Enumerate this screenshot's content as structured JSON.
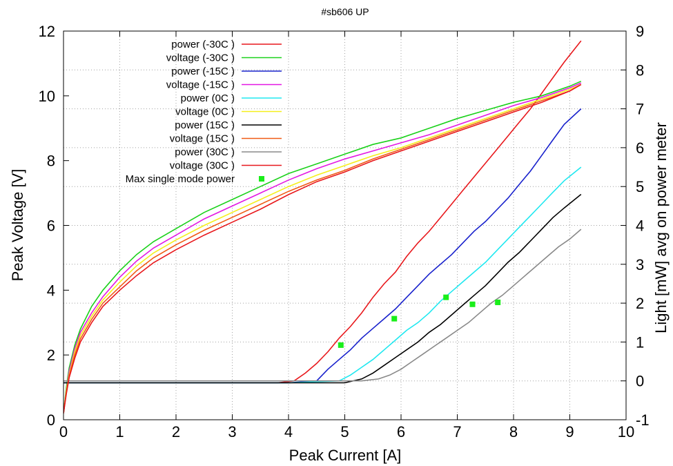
{
  "chart_data": {
    "type": "line",
    "title": "#sb606 UP",
    "xlabel": "Peak Current [A]",
    "ylabel": "Peak Voltage [V]",
    "y2label": "Light [mW] avg on power meter",
    "xlim": [
      0,
      10
    ],
    "ylim": [
      0,
      12
    ],
    "y2lim": [
      -1,
      9
    ],
    "xticks": [
      "0",
      "1",
      "2",
      "3",
      "4",
      "5",
      "6",
      "7",
      "8",
      "9",
      "10"
    ],
    "yticks": [
      "0",
      "2",
      "4",
      "6",
      "8",
      "10",
      "12"
    ],
    "y2ticks": [
      "-1",
      "0",
      "1",
      "2",
      "3",
      "4",
      "5",
      "6",
      "7",
      "8",
      "9"
    ],
    "grid": true,
    "legend_position": "top-left",
    "series": [
      {
        "name": "power (-30C )",
        "axis": "y2",
        "color": "#e8171b",
        "x": [
          0,
          1,
          2,
          3,
          3.8,
          4.1,
          4.3,
          4.5,
          4.7,
          4.9,
          5.1,
          5.3,
          5.5,
          5.7,
          5.9,
          6.1,
          6.3,
          6.5,
          6.7,
          6.9,
          7.1,
          7.3,
          7.5,
          7.7,
          7.9,
          8.1,
          8.3,
          8.5,
          8.7,
          8.9,
          9.2
        ],
        "y": [
          -0.05,
          -0.05,
          -0.05,
          -0.05,
          -0.05,
          0.0,
          0.2,
          0.45,
          0.75,
          1.1,
          1.4,
          1.75,
          2.15,
          2.5,
          2.8,
          3.2,
          3.55,
          3.85,
          4.2,
          4.55,
          4.9,
          5.25,
          5.6,
          5.95,
          6.3,
          6.65,
          7.0,
          7.4,
          7.8,
          8.2,
          8.75
        ]
      },
      {
        "name": "voltage (-30C )",
        "axis": "y",
        "color": "#1ad11a",
        "x": [
          0,
          0.05,
          0.1,
          0.2,
          0.3,
          0.5,
          0.7,
          1.0,
          1.3,
          1.6,
          2.0,
          2.5,
          3.0,
          3.5,
          4.0,
          4.5,
          5.0,
          5.5,
          6.0,
          6.5,
          7.0,
          7.5,
          8.0,
          8.5,
          9.0,
          9.2
        ],
        "y": [
          0.2,
          1.0,
          1.6,
          2.3,
          2.8,
          3.5,
          4.0,
          4.6,
          5.1,
          5.5,
          5.9,
          6.4,
          6.8,
          7.2,
          7.6,
          7.9,
          8.2,
          8.5,
          8.7,
          9.0,
          9.3,
          9.55,
          9.8,
          10.0,
          10.3,
          10.45
        ]
      },
      {
        "name": "power (-15C )",
        "axis": "y2",
        "color": "#1720cc",
        "x": [
          0,
          1,
          2,
          3,
          4,
          4.5,
          4.7,
          4.9,
          5.1,
          5.3,
          5.5,
          5.7,
          5.9,
          6.1,
          6.3,
          6.5,
          6.7,
          6.9,
          7.1,
          7.3,
          7.5,
          7.7,
          7.9,
          8.1,
          8.3,
          8.5,
          8.7,
          8.9,
          9.2
        ],
        "y": [
          -0.05,
          -0.05,
          -0.05,
          -0.05,
          -0.05,
          0.0,
          0.3,
          0.55,
          0.8,
          1.1,
          1.35,
          1.6,
          1.85,
          2.15,
          2.45,
          2.75,
          3.0,
          3.25,
          3.55,
          3.85,
          4.1,
          4.4,
          4.7,
          5.05,
          5.4,
          5.8,
          6.2,
          6.6,
          7.0
        ]
      },
      {
        "name": "voltage (-15C )",
        "axis": "y",
        "color": "#e317e3",
        "x": [
          0,
          0.05,
          0.1,
          0.2,
          0.3,
          0.5,
          0.7,
          1.0,
          1.3,
          1.6,
          2.0,
          2.5,
          3.0,
          3.5,
          4.0,
          4.5,
          5.0,
          5.5,
          6.0,
          6.5,
          7.0,
          7.5,
          8.0,
          8.5,
          9.0,
          9.2
        ],
        "y": [
          0.2,
          0.9,
          1.5,
          2.2,
          2.7,
          3.3,
          3.8,
          4.4,
          4.9,
          5.3,
          5.7,
          6.2,
          6.6,
          7.0,
          7.4,
          7.75,
          8.05,
          8.3,
          8.55,
          8.8,
          9.1,
          9.4,
          9.7,
          9.95,
          10.25,
          10.4
        ]
      },
      {
        "name": "power (0C )",
        "axis": "y2",
        "color": "#1ee8f0",
        "x": [
          0,
          1,
          2,
          3,
          4,
          4.9,
          5.1,
          5.3,
          5.5,
          5.7,
          5.9,
          6.1,
          6.3,
          6.5,
          6.7,
          6.9,
          7.1,
          7.3,
          7.5,
          7.7,
          7.9,
          8.1,
          8.3,
          8.5,
          8.7,
          8.9,
          9.2
        ],
        "y": [
          -0.05,
          -0.05,
          -0.05,
          -0.05,
          -0.05,
          0.0,
          0.15,
          0.35,
          0.55,
          0.8,
          1.05,
          1.3,
          1.5,
          1.75,
          2.05,
          2.3,
          2.55,
          2.8,
          3.05,
          3.35,
          3.65,
          3.95,
          4.25,
          4.55,
          4.85,
          5.15,
          5.5
        ]
      },
      {
        "name": "voltage (0C )",
        "axis": "y",
        "color": "#f5ef1a",
        "x": [
          0,
          0.05,
          0.1,
          0.2,
          0.3,
          0.5,
          0.7,
          1.0,
          1.3,
          1.6,
          2.0,
          2.5,
          3.0,
          3.5,
          4.0,
          4.5,
          5.0,
          5.5,
          6.0,
          6.5,
          7.0,
          7.5,
          8.0,
          8.5,
          9.0,
          9.2
        ],
        "y": [
          0.2,
          0.9,
          1.4,
          2.1,
          2.6,
          3.2,
          3.7,
          4.25,
          4.75,
          5.15,
          5.55,
          6.0,
          6.4,
          6.8,
          7.2,
          7.55,
          7.85,
          8.15,
          8.4,
          8.7,
          9.0,
          9.3,
          9.6,
          9.9,
          10.2,
          10.35
        ]
      },
      {
        "name": "power (15C )",
        "axis": "y2",
        "color": "#000000",
        "x": [
          0,
          1,
          2,
          3,
          4,
          5.0,
          5.3,
          5.5,
          5.7,
          5.9,
          6.1,
          6.3,
          6.5,
          6.7,
          6.9,
          7.1,
          7.3,
          7.5,
          7.7,
          7.9,
          8.1,
          8.3,
          8.5,
          8.7,
          8.9,
          9.2
        ],
        "y": [
          -0.05,
          -0.05,
          -0.05,
          -0.05,
          -0.05,
          -0.05,
          0.05,
          0.2,
          0.4,
          0.6,
          0.8,
          1.0,
          1.25,
          1.45,
          1.7,
          1.95,
          2.2,
          2.45,
          2.75,
          3.05,
          3.3,
          3.6,
          3.9,
          4.2,
          4.45,
          4.8
        ]
      },
      {
        "name": "voltage (15C )",
        "axis": "y",
        "color": "#f05a14",
        "x": [
          0,
          0.05,
          0.1,
          0.2,
          0.3,
          0.5,
          0.7,
          1.0,
          1.3,
          1.6,
          2.0,
          2.5,
          3.0,
          3.5,
          4.0,
          4.5,
          5.0,
          5.5,
          6.0,
          6.5,
          7.0,
          7.5,
          8.0,
          8.5,
          9.0,
          9.2
        ],
        "y": [
          0.2,
          0.85,
          1.35,
          2.0,
          2.5,
          3.1,
          3.6,
          4.1,
          4.6,
          5.0,
          5.4,
          5.85,
          6.25,
          6.65,
          7.05,
          7.4,
          7.7,
          8.05,
          8.35,
          8.65,
          8.95,
          9.25,
          9.55,
          9.85,
          10.15,
          10.35
        ]
      },
      {
        "name": "power (30C )",
        "axis": "y2",
        "color": "#888888",
        "x": [
          0,
          1,
          2,
          3,
          4,
          5.3,
          5.6,
          5.8,
          6.0,
          6.2,
          6.4,
          6.6,
          6.8,
          7.0,
          7.2,
          7.4,
          7.6,
          7.8,
          8.0,
          8.2,
          8.4,
          8.6,
          8.8,
          9.0,
          9.2
        ],
        "y": [
          0.0,
          0.0,
          0.0,
          0.0,
          0.0,
          0.0,
          0.05,
          0.15,
          0.3,
          0.5,
          0.7,
          0.9,
          1.1,
          1.3,
          1.5,
          1.75,
          2.0,
          2.2,
          2.45,
          2.7,
          2.95,
          3.2,
          3.45,
          3.65,
          3.9
        ]
      },
      {
        "name": "voltage (30C )",
        "axis": "y",
        "color": "#e8171b",
        "x": [
          0,
          0.05,
          0.1,
          0.2,
          0.3,
          0.5,
          0.7,
          1.0,
          1.3,
          1.6,
          2.0,
          2.5,
          3.0,
          3.5,
          4.0,
          4.5,
          5.0,
          5.5,
          6.0,
          6.5,
          7.0,
          7.5,
          8.0,
          8.5,
          9.0,
          9.2
        ],
        "y": [
          0.2,
          0.8,
          1.3,
          1.9,
          2.4,
          3.0,
          3.5,
          4.0,
          4.45,
          4.85,
          5.25,
          5.7,
          6.1,
          6.5,
          6.95,
          7.35,
          7.65,
          8.0,
          8.3,
          8.6,
          8.9,
          9.2,
          9.5,
          9.8,
          10.15,
          10.35
        ]
      },
      {
        "name": "Max single mode power",
        "axis": "y2",
        "color": "#1aee1a",
        "type": "points",
        "x": [
          4.93,
          5.88,
          6.8,
          7.27,
          7.72
        ],
        "y": [
          0.92,
          1.6,
          2.15,
          1.97,
          2.02
        ]
      }
    ]
  }
}
